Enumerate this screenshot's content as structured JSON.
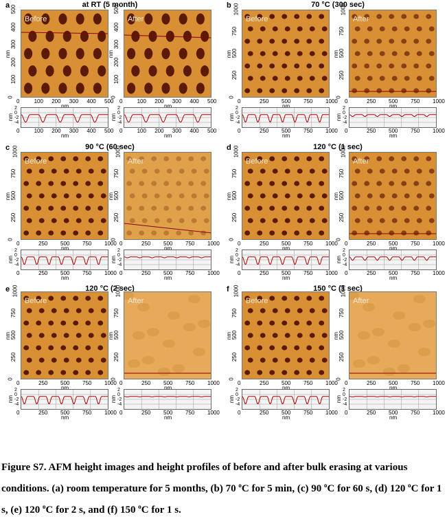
{
  "panels": [
    {
      "letter": "a",
      "title": "at RT (5 month)",
      "before": "Before",
      "after": "After",
      "ticks": [
        "0",
        "100",
        "200",
        "300",
        "400",
        "500"
      ],
      "yticks": [
        "500",
        "400",
        "300",
        "200",
        "100",
        "0"
      ],
      "unit": "nm",
      "profile_ticks": [
        "2",
        "0",
        "-2",
        "-4"
      ]
    },
    {
      "letter": "b",
      "title": "70 °C (300 sec)",
      "before": "Before",
      "after": "After",
      "ticks": [
        "0",
        "250",
        "500",
        "750",
        "1000"
      ],
      "yticks": [
        "1000",
        "750",
        "500",
        "250",
        "0"
      ],
      "unit": "nm",
      "profile_ticks": [
        "2",
        "0",
        "-2",
        "-4"
      ]
    },
    {
      "letter": "c",
      "title": "90 °C (60 sec)",
      "before": "Before",
      "after": "After",
      "ticks": [
        "0",
        "250",
        "500",
        "750",
        "1000"
      ],
      "yticks": [
        "1000",
        "750",
        "500",
        "250",
        "0"
      ],
      "unit": "nm",
      "profile_ticks": [
        "2",
        "0",
        "-2",
        "-4"
      ]
    },
    {
      "letter": "d",
      "title": "120 °C (1 sec)",
      "before": "Before",
      "after": "After",
      "ticks": [
        "0",
        "250",
        "500",
        "750",
        "1000"
      ],
      "yticks": [
        "1000",
        "750",
        "500",
        "250",
        "0"
      ],
      "unit": "nm",
      "profile_ticks": [
        "2",
        "0",
        "-2",
        "-4"
      ]
    },
    {
      "letter": "e",
      "title": "120 °C (2 sec)",
      "before": "Before",
      "after": "After",
      "ticks": [
        "0",
        "250",
        "500",
        "750",
        "1000"
      ],
      "yticks": [
        "1000",
        "750",
        "500",
        "250",
        "0"
      ],
      "unit": "nm",
      "profile_ticks": [
        "2",
        "0",
        "-2",
        "-4"
      ]
    },
    {
      "letter": "f",
      "title": "150 °C (1 sec)",
      "before": "Before",
      "after": "After",
      "ticks": [
        "0",
        "250",
        "500",
        "750",
        "1000"
      ],
      "yticks": [
        "1000",
        "750",
        "500",
        "250",
        "0"
      ],
      "unit": "nm",
      "profile_ticks": [
        "2",
        "0",
        "-2",
        "-4"
      ]
    }
  ],
  "caption": {
    "lead": "Figure S7. AFM height images and height profiles of before and after bulk erasing at various conditions. (a) room temperature for 5 months, (b) 70 ",
    "deg": "o",
    "parts": [
      "C for 5 min, (c) 90 ",
      "C for 60 s, (d) 120 ",
      "C for 1 s, (e) 120 ",
      "C for 2 s, and (f) 150 ",
      "C for 1 s."
    ]
  }
}
